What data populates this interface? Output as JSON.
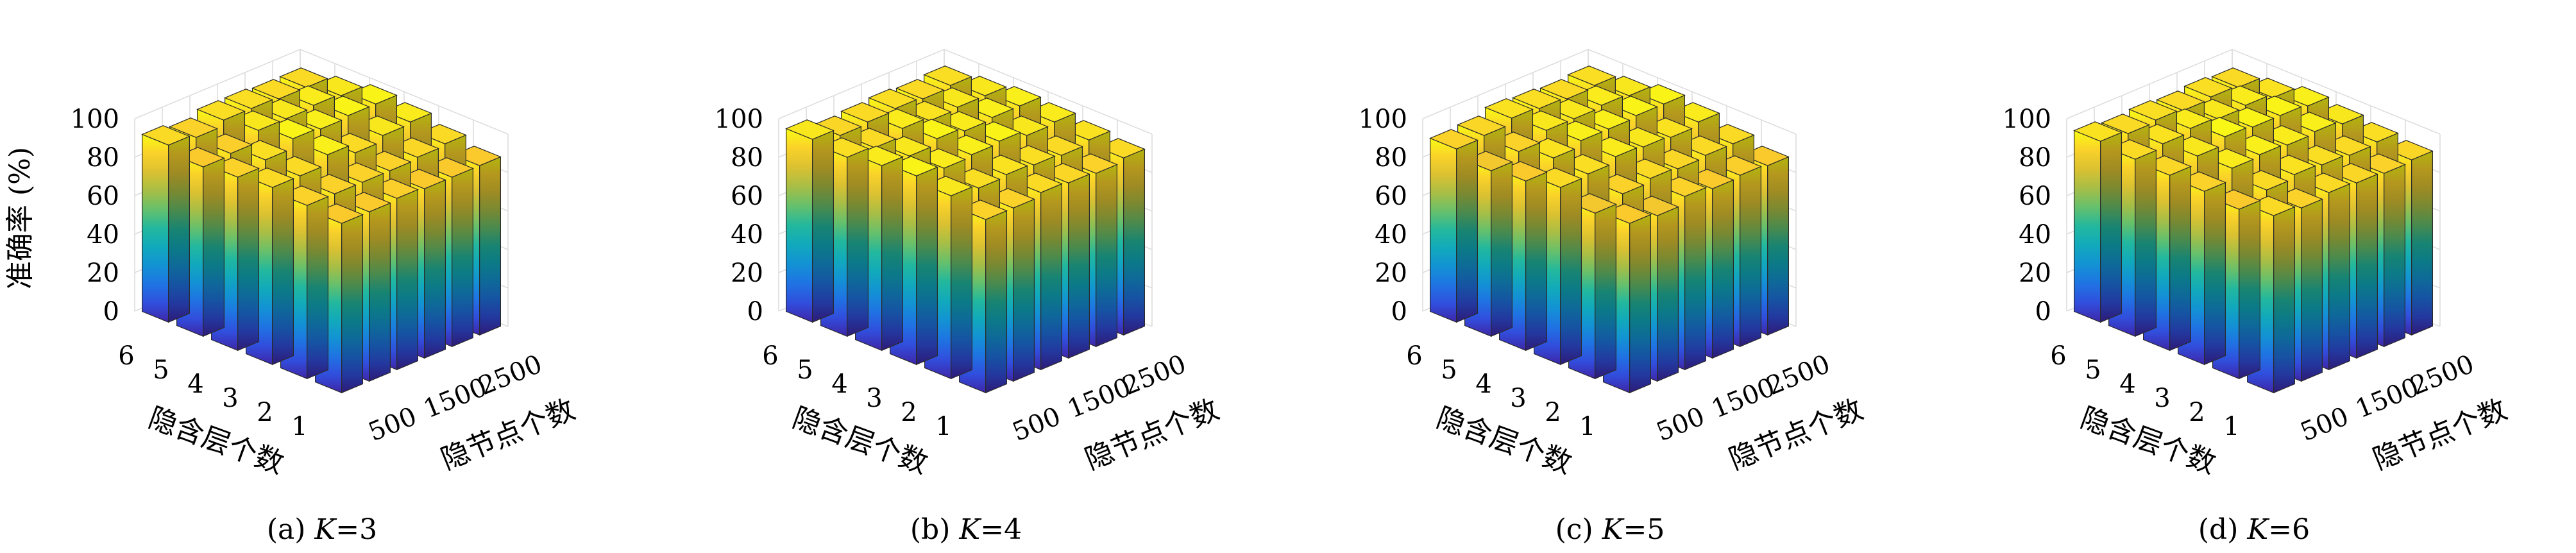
{
  "chart_data": [
    {
      "type": "bar3d",
      "caption_prefix": "(a) ",
      "caption_var": "K",
      "caption_suffix": "=3",
      "ylabel": "准确率 (%)",
      "xlabel": "隐含层个数",
      "zlabel": "隐节点个数",
      "layers": [
        6,
        5,
        4,
        3,
        2,
        1
      ],
      "node_tick_labels": [
        "500",
        "1500",
        "2500"
      ],
      "zlim": [
        0,
        100
      ],
      "zticks": [
        0,
        20,
        40,
        60,
        80,
        100
      ],
      "values": [
        [
          92,
          88,
          90,
          92,
          90,
          88
        ],
        [
          90,
          89,
          93,
          92,
          90,
          88
        ],
        [
          93,
          95,
          98,
          97,
          90,
          89
        ],
        [
          93,
          95,
          97,
          92,
          90,
          88
        ],
        [
          92,
          96,
          98,
          95,
          91,
          88
        ],
        [
          92,
          95,
          98,
          96,
          92,
          88
        ]
      ],
      "colormap": "parula"
    },
    {
      "type": "bar3d",
      "caption_prefix": "(b) ",
      "caption_var": "K",
      "caption_suffix": "=4",
      "ylabel": "",
      "xlabel": "隐含层个数",
      "zlabel": "隐节点个数",
      "layers": [
        6,
        5,
        4,
        3,
        2,
        1
      ],
      "node_tick_labels": [
        "500",
        "1500",
        "2500"
      ],
      "zlim": [
        0,
        100
      ],
      "zticks": [
        0,
        20,
        40,
        60,
        80,
        100
      ],
      "values": [
        [
          95,
          93,
          96,
          98,
          95,
          90
        ],
        [
          91,
          92,
          95,
          96,
          93,
          90
        ],
        [
          92,
          96,
          98,
          97,
          94,
          92
        ],
        [
          93,
          94,
          96,
          98,
          93,
          91
        ],
        [
          92,
          95,
          97,
          95,
          92,
          90
        ],
        [
          93,
          95,
          97,
          96,
          94,
          92
        ]
      ],
      "colormap": "parula"
    },
    {
      "type": "bar3d",
      "caption_prefix": "(c) ",
      "caption_var": "K",
      "caption_suffix": "=5",
      "ylabel": "",
      "xlabel": "隐含层个数",
      "zlabel": "隐节点个数",
      "layers": [
        6,
        5,
        4,
        3,
        2,
        1
      ],
      "node_tick_labels": [
        "500",
        "1500",
        "2500"
      ],
      "zlim": [
        0,
        100
      ],
      "zticks": [
        0,
        20,
        40,
        60,
        80,
        100
      ],
      "values": [
        [
          90,
          86,
          88,
          92,
          86,
          88
        ],
        [
          91,
          90,
          94,
          93,
          90,
          86
        ],
        [
          94,
          95,
          97,
          96,
          92,
          90
        ],
        [
          93,
          95,
          97,
          95,
          91,
          88
        ],
        [
          92,
          96,
          98,
          94,
          92,
          89
        ],
        [
          93,
          95,
          98,
          96,
          92,
          88
        ]
      ],
      "colormap": "parula"
    },
    {
      "type": "bar3d",
      "caption_prefix": "(d) ",
      "caption_var": "K",
      "caption_suffix": "=6",
      "ylabel": "",
      "xlabel": "隐含层个数",
      "zlabel": "隐节点个数",
      "layers": [
        6,
        5,
        4,
        3,
        2,
        1
      ],
      "node_tick_labels": [
        "500",
        "1500",
        "2500"
      ],
      "zlim": [
        0,
        100
      ],
      "zticks": [
        0,
        20,
        40,
        60,
        80,
        100
      ],
      "values": [
        [
          94,
          92,
          91,
          90,
          88,
          92
        ],
        [
          92,
          94,
          95,
          96,
          92,
          90
        ],
        [
          93,
          96,
          99,
          97,
          94,
          92
        ],
        [
          92,
          95,
          98,
          96,
          93,
          91
        ],
        [
          93,
          96,
          98,
          97,
          92,
          90
        ],
        [
          92,
          94,
          97,
          95,
          93,
          91
        ]
      ],
      "colormap": "parula"
    }
  ]
}
